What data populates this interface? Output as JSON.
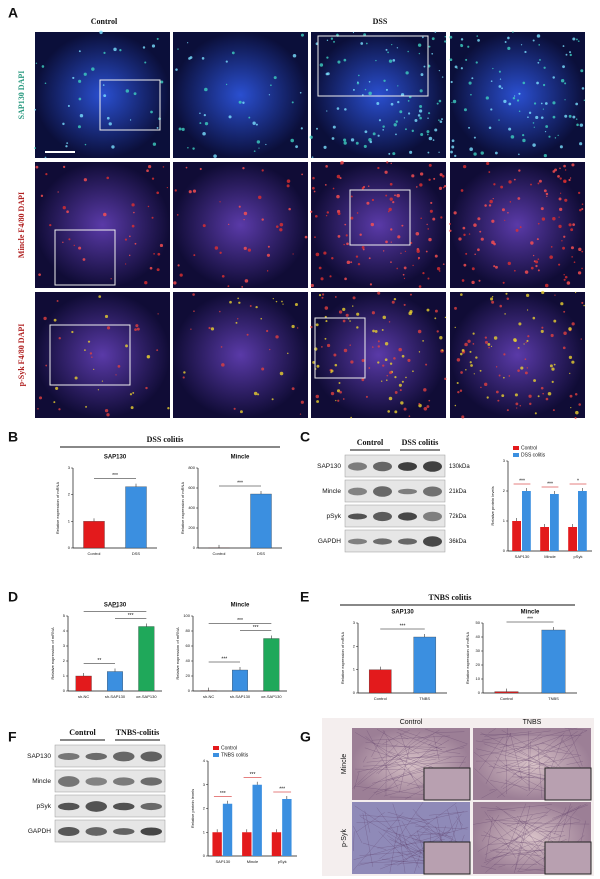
{
  "figure": {
    "panel_labels": [
      "A",
      "B",
      "C",
      "D",
      "E",
      "F",
      "G"
    ],
    "A": {
      "columns": [
        "Control",
        "DSS"
      ],
      "rows": [
        "SAP130 DAPI",
        "Mincle F4/80 DAPI",
        "p-Syk F4/80 DAPI"
      ]
    },
    "B": {
      "title": "DSS colitis"
    },
    "C": {
      "groups": [
        "Control",
        "DSS colitis"
      ],
      "proteins": [
        "SAP130",
        "Mincle",
        "pSyk",
        "GAPDH"
      ],
      "sizes": [
        "130kDa",
        "21kDa",
        "72kDa",
        "36kDa"
      ]
    },
    "E": {
      "title": "TNBS colitis"
    },
    "F": {
      "groups": [
        "Control",
        "TNBS-colitis"
      ],
      "proteins": [
        "SAP130",
        "Mincle",
        "pSyk",
        "GAPDH"
      ]
    },
    "G": {
      "columns": [
        "Control",
        "TNBS"
      ],
      "rows": [
        "Mincle",
        "p-Syk"
      ]
    }
  },
  "chart_data": [
    {
      "type": "bar",
      "title": "SAP130",
      "ylabel": "Relative expression of mRNA",
      "categories": [
        "Control",
        "DSS"
      ],
      "values": [
        1,
        2.3
      ],
      "colors": [
        "#e31a1c",
        "#3b8fe0"
      ],
      "ylim": [
        0,
        3
      ],
      "yticks": [
        0,
        1,
        2,
        3
      ],
      "significance": [
        "***"
      ]
    },
    {
      "type": "bar",
      "title": "Mincle",
      "ylabel": "Relative expression of mRNA",
      "categories": [
        "Control",
        "DSS"
      ],
      "values": [
        1,
        540
      ],
      "colors": [
        "#e31a1c",
        "#3b8fe0"
      ],
      "ylim": [
        0,
        800
      ],
      "yticks": [
        0,
        200,
        400,
        600,
        800
      ],
      "significance": [
        "***"
      ]
    },
    {
      "type": "bar",
      "ylabel": "Relative protein levels",
      "categories": [
        "SAP130",
        "Mincle",
        "pSyk"
      ],
      "series": [
        {
          "name": "Control",
          "color": "#e31a1c",
          "values": [
            1,
            0.8,
            0.8
          ]
        },
        {
          "name": "DSS colitis",
          "color": "#3b8fe0",
          "values": [
            2,
            1.9,
            2
          ]
        }
      ],
      "ylim": [
        0,
        3
      ],
      "yticks": [
        0,
        1,
        2,
        3
      ],
      "significance": [
        "***",
        "***",
        "*"
      ]
    },
    {
      "type": "bar",
      "title": "SAP130",
      "ylabel": "Relative expression of mRNA",
      "categories": [
        "sh-NC",
        "sh-SAP130",
        "oe-SAP130"
      ],
      "values": [
        1,
        1.3,
        4.3
      ],
      "colors": [
        "#e31a1c",
        "#3b8fe0",
        "#1fa85a"
      ],
      "ylim": [
        0,
        5
      ],
      "yticks": [
        0,
        1,
        2,
        3,
        4,
        5
      ],
      "significance": [
        "**",
        "***",
        "***"
      ]
    },
    {
      "type": "bar",
      "title": "Mincle",
      "ylabel": "Relative expression of mRNA",
      "categories": [
        "sh-NC",
        "sh-SAP130",
        "oe-SAP130"
      ],
      "values": [
        0.5,
        28,
        70
      ],
      "colors": [
        "#e31a1c",
        "#3b8fe0",
        "#1fa85a"
      ],
      "ylim": [
        0,
        100
      ],
      "yticks": [
        0,
        20,
        40,
        60,
        80,
        100
      ],
      "significance": [
        "***",
        "***",
        "***"
      ]
    },
    {
      "type": "bar",
      "title": "SAP130",
      "ylabel": "Relative expression of mRNA",
      "categories": [
        "Control",
        "TNBS"
      ],
      "values": [
        1,
        2.4
      ],
      "colors": [
        "#e31a1c",
        "#3b8fe0"
      ],
      "ylim": [
        0,
        3
      ],
      "yticks": [
        0,
        1,
        2,
        3
      ],
      "significance": [
        "***"
      ]
    },
    {
      "type": "bar",
      "title": "Mincle",
      "ylabel": "Relative expression of mRNA",
      "categories": [
        "Control",
        "TNBS"
      ],
      "values": [
        1,
        45
      ],
      "colors": [
        "#e31a1c",
        "#3b8fe0"
      ],
      "ylim": [
        0,
        50
      ],
      "yticks": [
        0,
        10,
        20,
        30,
        40,
        50
      ],
      "significance": [
        "***"
      ]
    },
    {
      "type": "bar",
      "ylabel": "Relative protein levels",
      "categories": [
        "SAP130",
        "Mincle",
        "pSyk"
      ],
      "series": [
        {
          "name": "Control",
          "color": "#e31a1c",
          "values": [
            1,
            1,
            1
          ]
        },
        {
          "name": "TNBS colitis",
          "color": "#3b8fe0",
          "values": [
            2.2,
            3,
            2.4
          ]
        }
      ],
      "ylim": [
        0,
        4
      ],
      "yticks": [
        0,
        1,
        2,
        3,
        4
      ],
      "significance": [
        "***",
        "***",
        "***"
      ]
    }
  ]
}
